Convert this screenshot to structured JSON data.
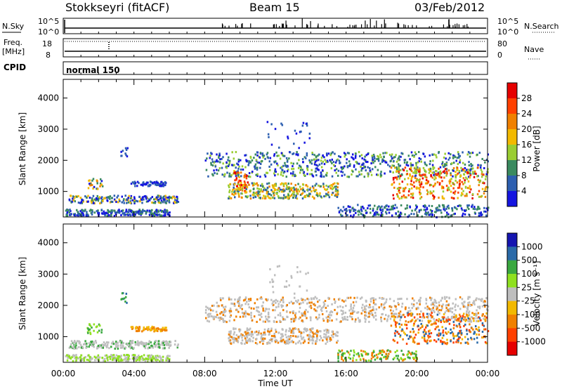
{
  "header": {
    "station": "Stokkseyri (fitACF)",
    "beam": "Beam 15",
    "date": "03/Feb/2012"
  },
  "panels": {
    "nsky": {
      "label": "N.Sky",
      "left_ticks": [
        "10^5",
        "10^0"
      ],
      "right_ticks": [
        "10^5",
        "10^0"
      ],
      "right_label": "N.Search"
    },
    "freq": {
      "label_top": "Freq.",
      "label_bottom": "[MHz]",
      "left_ticks": [
        "18",
        "8"
      ],
      "right_ticks": [
        "80",
        "0"
      ],
      "right_label": "Nave"
    },
    "cpid": {
      "label": "CPID",
      "mode": "normal 150"
    }
  },
  "colors": {
    "power": [
      "#1515e0",
      "#2d5fb0",
      "#3a8a5f",
      "#9acd32",
      "#f2b900",
      "#f08000",
      "#ff4000",
      "#e60000"
    ],
    "velocity_neg": [
      "#e60000",
      "#ff4000",
      "#f08000",
      "#f2b900"
    ],
    "ground": "#bebebe",
    "velocity_pos": [
      "#8fe020",
      "#3aa840",
      "#2a6aa8",
      "#1515b0"
    ]
  },
  "chart_data": [
    {
      "type": "heatmap",
      "quantity": "power",
      "ylabel": "Slant Range [km]",
      "yticks": [
        1000,
        2000,
        3000,
        4000
      ],
      "ylim": [
        180,
        4600
      ],
      "xlim": [
        0,
        24
      ],
      "xticks": [
        0,
        4,
        8,
        12,
        16,
        20,
        24
      ],
      "colorbar": {
        "label": "Power [dB]",
        "ticks": [
          "4",
          "8",
          "12",
          "16",
          "20",
          "24",
          "28"
        ]
      }
    },
    {
      "type": "heatmap",
      "quantity": "velocity",
      "ylabel": "Slant Range [km]",
      "yticks": [
        1000,
        2000,
        3000,
        4000
      ],
      "ylim": [
        180,
        4600
      ],
      "xlim": [
        0,
        24
      ],
      "xticks": [
        0,
        4,
        8,
        12,
        16,
        20,
        24
      ],
      "xticklabels": [
        "00:00",
        "04:00",
        "08:00",
        "12:00",
        "16:00",
        "20:00",
        "00:00"
      ],
      "xlabel": "Time UT",
      "colorbar": {
        "label": "Velocity [m s⁻¹]",
        "ticks": [
          "1000",
          "500",
          "100",
          "25",
          "-25",
          "-100",
          "-500",
          "-1000"
        ]
      }
    }
  ]
}
